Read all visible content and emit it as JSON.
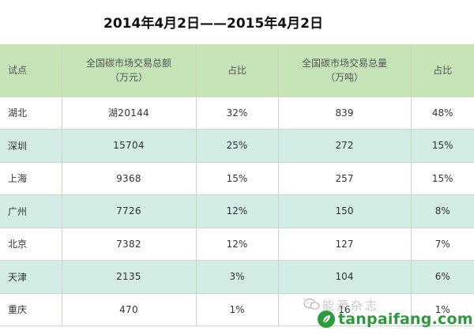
{
  "title": "2014年4月2日——2015年4月2日",
  "table": {
    "headers": {
      "col0": "试点",
      "col1_line1": "全国碳市场交易总额",
      "col1_line2": "（万元）",
      "col2": "占比",
      "col3_line1": "全国碳市场交易总量",
      "col3_line2": "（万吨）",
      "col4": "占比"
    },
    "rows": [
      {
        "region": "湖北",
        "amount": "湖20144",
        "amount_share": "32%",
        "volume": "839",
        "volume_share": "48%"
      },
      {
        "region": "深圳",
        "amount": "15704",
        "amount_share": "25%",
        "volume": "272",
        "volume_share": "15%"
      },
      {
        "region": "上海",
        "amount": "9368",
        "amount_share": "15%",
        "volume": "257",
        "volume_share": "15%"
      },
      {
        "region": "广州",
        "amount": "7726",
        "amount_share": "12%",
        "volume": "150",
        "volume_share": "8%"
      },
      {
        "region": "北京",
        "amount": "7382",
        "amount_share": "12%",
        "volume": "127",
        "volume_share": "7%"
      },
      {
        "region": "天津",
        "amount": "2135",
        "amount_share": "3%",
        "volume": "104",
        "volume_share": "6%"
      },
      {
        "region": "重庆",
        "amount": "470",
        "amount_share": "1%",
        "volume": "16",
        "volume_share": "1%"
      }
    ]
  },
  "watermark": {
    "text": "能源杂志",
    "brand": "tanpaifang.com",
    "icon": "wechat-icon",
    "logo": "tanpaifang-logo"
  },
  "colors": {
    "header_bg": "#c6e3b8",
    "stripe_bg": "#d3ece5",
    "brand_green": "#2e9a3e"
  }
}
